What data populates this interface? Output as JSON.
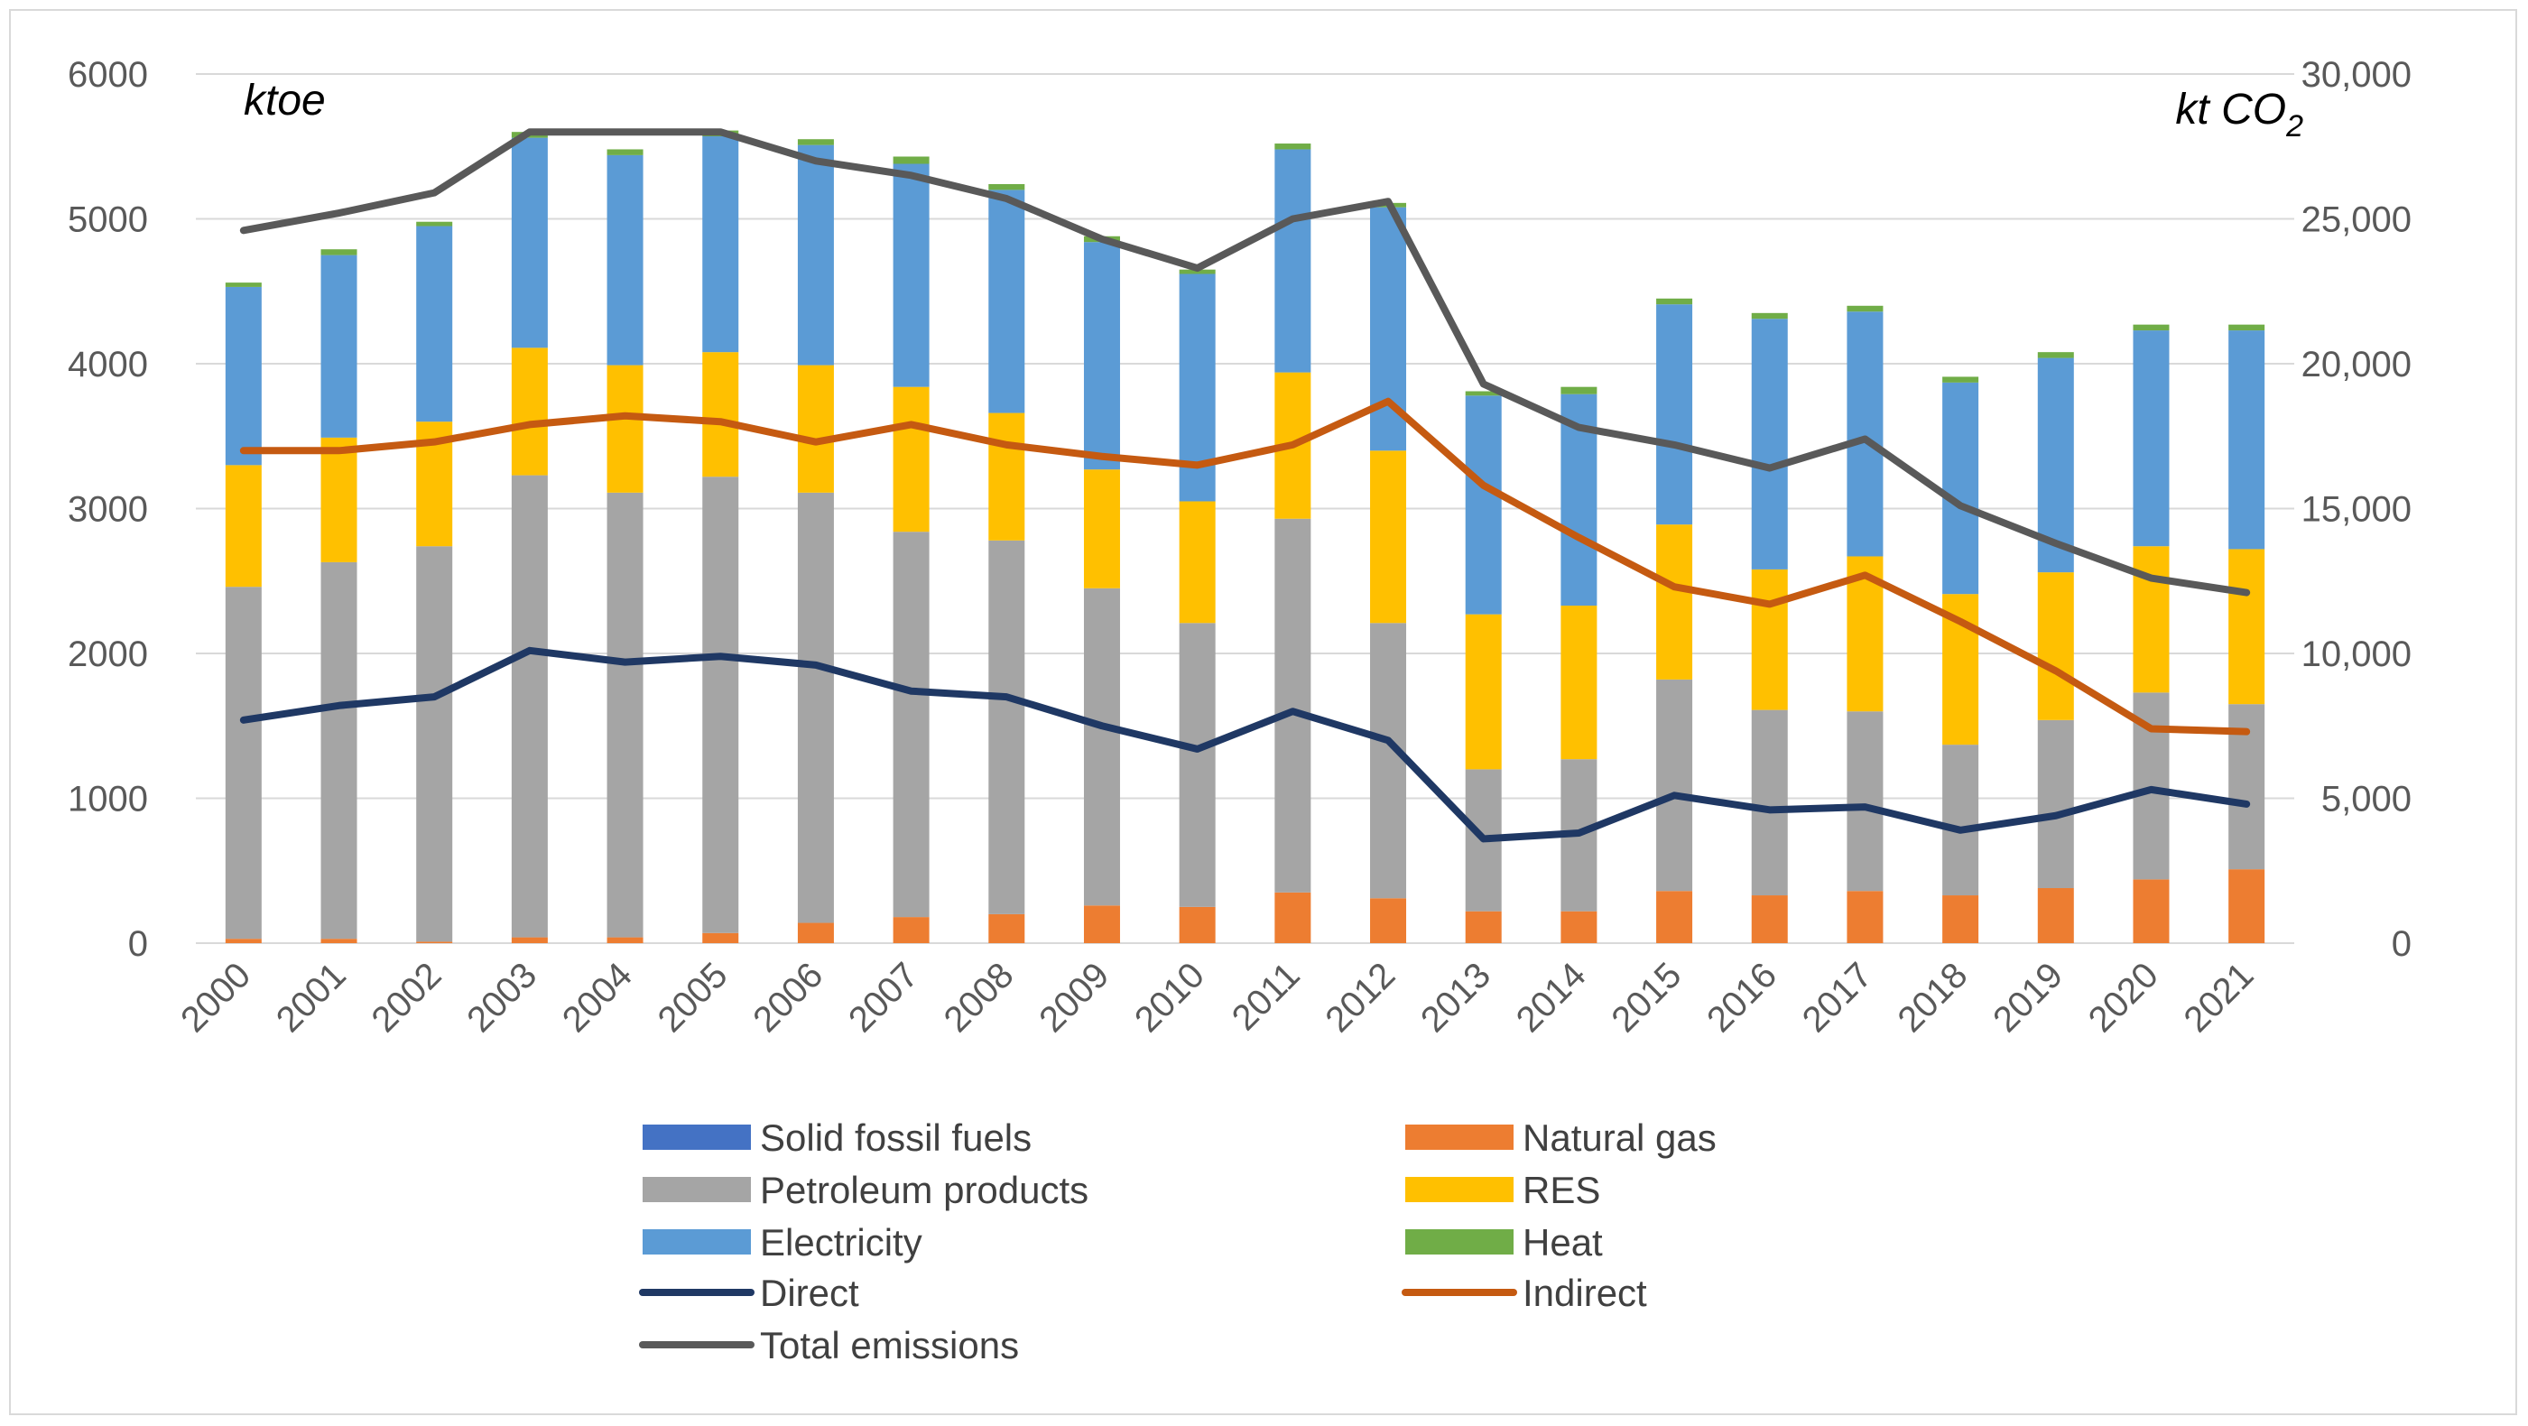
{
  "chart_data": {
    "type": "bar",
    "stacked": true,
    "categories": [
      "2000",
      "2001",
      "2002",
      "2003",
      "2004",
      "2005",
      "2006",
      "2007",
      "2008",
      "2009",
      "2010",
      "2011",
      "2012",
      "2013",
      "2014",
      "2015",
      "2016",
      "2017",
      "2018",
      "2019",
      "2020",
      "2021"
    ],
    "left_axis": {
      "label": "ktoe",
      "min": 0,
      "max": 6000,
      "ticks": [
        "0",
        "1000",
        "2000",
        "3000",
        "4000",
        "5000",
        "6000"
      ]
    },
    "right_axis": {
      "label": "kt CO",
      "label_sub": "2",
      "min": 0,
      "max": 30000,
      "ticks": [
        "0",
        "5,000",
        "10,000",
        "15,000",
        "20,000",
        "25,000",
        "30,000"
      ]
    },
    "bar_series": [
      {
        "name": "Solid fossil fuels",
        "color": "#4472c4",
        "values": [
          0,
          0,
          0,
          0,
          0,
          0,
          0,
          0,
          0,
          0,
          0,
          0,
          0,
          0,
          0,
          0,
          0,
          0,
          0,
          0,
          0,
          0
        ]
      },
      {
        "name": "Natural gas",
        "color": "#ed7d31",
        "values": [
          30,
          30,
          10,
          40,
          40,
          70,
          140,
          180,
          200,
          260,
          250,
          350,
          310,
          220,
          220,
          360,
          330,
          360,
          330,
          380,
          440,
          510
        ]
      },
      {
        "name": "Petroleum products",
        "color": "#a5a5a5",
        "values": [
          2430,
          2600,
          2730,
          3190,
          3070,
          3150,
          2970,
          2660,
          2580,
          2190,
          1960,
          2580,
          1900,
          980,
          1050,
          1460,
          1280,
          1240,
          1040,
          1160,
          1290,
          1140
        ]
      },
      {
        "name": "RES",
        "color": "#ffc000",
        "values": [
          840,
          860,
          860,
          880,
          880,
          860,
          880,
          1000,
          880,
          820,
          840,
          1010,
          1190,
          1070,
          1060,
          1070,
          970,
          1070,
          1040,
          1020,
          1010,
          1070
        ]
      },
      {
        "name": "Electricity",
        "color": "#5b9bd5",
        "values": [
          1230,
          1260,
          1350,
          1450,
          1450,
          1490,
          1520,
          1540,
          1540,
          1570,
          1570,
          1540,
          1680,
          1510,
          1460,
          1520,
          1730,
          1690,
          1460,
          1480,
          1490,
          1510
        ]
      },
      {
        "name": "Heat",
        "color": "#70ad47",
        "values": [
          30,
          40,
          30,
          40,
          40,
          40,
          40,
          50,
          40,
          40,
          30,
          40,
          30,
          30,
          50,
          40,
          40,
          40,
          40,
          40,
          40,
          40
        ]
      }
    ],
    "line_series": [
      {
        "name": "Direct",
        "color": "#1f3864",
        "axis": "right",
        "values": [
          7700,
          8200,
          8500,
          10100,
          9700,
          9900,
          9600,
          8700,
          8500,
          7500,
          6700,
          8000,
          7000,
          3600,
          3800,
          5100,
          4600,
          4700,
          3900,
          4400,
          5300,
          4800
        ]
      },
      {
        "name": "Indirect",
        "color": "#c55a11",
        "axis": "right",
        "values": [
          17000,
          17000,
          17300,
          17900,
          18200,
          18000,
          17300,
          17900,
          17200,
          16800,
          16500,
          17200,
          18700,
          15800,
          14000,
          12300,
          11700,
          12700,
          11100,
          9400,
          7400,
          7300
        ]
      },
      {
        "name": "Total emissions",
        "color": "#595959",
        "axis": "right",
        "values": [
          24600,
          25200,
          25900,
          28000,
          28000,
          28000,
          27000,
          26500,
          25700,
          24300,
          23300,
          25000,
          25600,
          19300,
          17800,
          17200,
          16400,
          17400,
          15100,
          13800,
          12600,
          12100
        ]
      }
    ],
    "legend": [
      "Solid fossil fuels",
      "Natural gas",
      "Petroleum products",
      "RES",
      "Electricity",
      "Heat",
      "Direct",
      "Indirect",
      "Total emissions"
    ],
    "legend_position": "bottom",
    "grid": true
  }
}
